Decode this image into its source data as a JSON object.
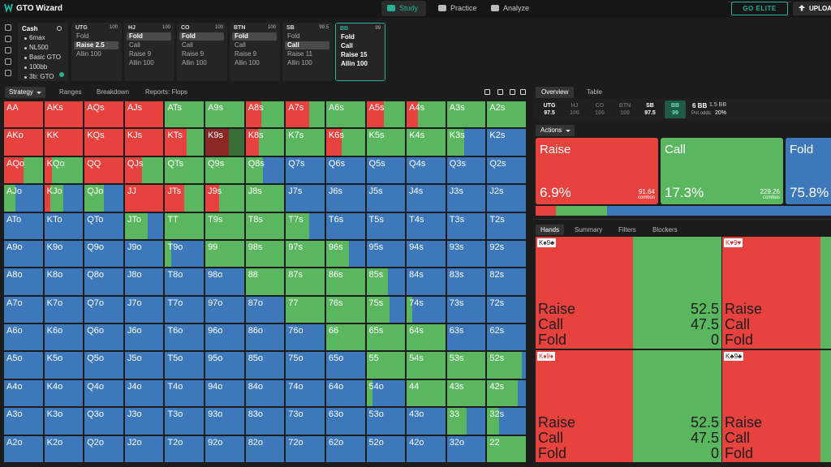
{
  "header": {
    "logo": "GTO Wizard",
    "nav": [
      "Study",
      "Practice",
      "Analyze"
    ],
    "active_nav": 0,
    "go_elite": "GO ELITE",
    "upload": "UPLOAD"
  },
  "game": {
    "title": "Cash",
    "settings": [
      "6max",
      "NL500",
      "Basic GTO",
      "100bb",
      "3b: GTO"
    ]
  },
  "positions": [
    {
      "name": "UTG",
      "stack": 100,
      "actions": [
        "Fold",
        "Raise 2.5",
        "Allin 100"
      ],
      "selected": 1
    },
    {
      "name": "HJ",
      "stack": 100,
      "actions": [
        "Fold",
        "Call",
        "Raise 9",
        "Allin 100"
      ],
      "selected": 0
    },
    {
      "name": "CO",
      "stack": 100,
      "actions": [
        "Fold",
        "Call",
        "Raise 9",
        "Allin 100"
      ],
      "selected": 0
    },
    {
      "name": "BTN",
      "stack": 100,
      "actions": [
        "Fold",
        "Call",
        "Raise 9",
        "Allin 100"
      ],
      "selected": 0
    },
    {
      "name": "SB",
      "stack": 99.5,
      "actions": [
        "Fold",
        "Call",
        "Raise 11",
        "Allin 100"
      ],
      "selected": 1
    },
    {
      "name": "BB",
      "stack": 99,
      "actions": [
        "Fold",
        "Call",
        "Raise 15",
        "Allin 100"
      ],
      "current": true
    }
  ],
  "tabs": [
    "Strategy",
    "Ranges",
    "Breakdown",
    "Reports: Flops"
  ],
  "matrix": {
    "colors": [
      "#e8423f",
      "#5bb75f",
      "#3c78ba"
    ],
    "selected": [
      1,
      5
    ],
    "hands": [
      [
        "AA",
        "AKs",
        "AQs",
        "AJs",
        "ATs",
        "A9s",
        "A8s",
        "A7s",
        "A6s",
        "A5s",
        "A4s",
        "A3s",
        "A2s"
      ],
      [
        "AKo",
        "KK",
        "KQs",
        "KJs",
        "KTs",
        "K9s",
        "K8s",
        "K7s",
        "K6s",
        "K5s",
        "K4s",
        "K3s",
        "K2s"
      ],
      [
        "AQo",
        "KQo",
        "QQ",
        "QJs",
        "QTs",
        "Q9s",
        "Q8s",
        "Q7s",
        "Q6s",
        "Q5s",
        "Q4s",
        "Q3s",
        "Q2s"
      ],
      [
        "AJo",
        "KJo",
        "QJo",
        "JJ",
        "JTs",
        "J9s",
        "J8s",
        "J7s",
        "J6s",
        "J5s",
        "J4s",
        "J3s",
        "J2s"
      ],
      [
        "ATo",
        "KTo",
        "QTo",
        "JTo",
        "TT",
        "T9s",
        "T8s",
        "T7s",
        "T6s",
        "T5s",
        "T4s",
        "T3s",
        "T2s"
      ],
      [
        "A9o",
        "K9o",
        "Q9o",
        "J9o",
        "T9o",
        "99",
        "98s",
        "97s",
        "96s",
        "95s",
        "94s",
        "93s",
        "92s"
      ],
      [
        "A8o",
        "K8o",
        "Q8o",
        "J8o",
        "T8o",
        "98o",
        "88",
        "87s",
        "86s",
        "85s",
        "84s",
        "83s",
        "82s"
      ],
      [
        "A7o",
        "K7o",
        "Q7o",
        "J7o",
        "T7o",
        "97o",
        "87o",
        "77",
        "76s",
        "75s",
        "74s",
        "73s",
        "72s"
      ],
      [
        "A6o",
        "K6o",
        "Q6o",
        "J6o",
        "T6o",
        "96o",
        "86o",
        "76o",
        "66",
        "65s",
        "64s",
        "63s",
        "62s"
      ],
      [
        "A5o",
        "K5o",
        "Q5o",
        "J5o",
        "T5o",
        "95o",
        "85o",
        "75o",
        "65o",
        "55",
        "54s",
        "53s",
        "52s"
      ],
      [
        "A4o",
        "K4o",
        "Q4o",
        "J4o",
        "T4o",
        "94o",
        "84o",
        "74o",
        "64o",
        "54o",
        "44",
        "43s",
        "42s"
      ],
      [
        "A3o",
        "K3o",
        "Q3o",
        "J3o",
        "T3o",
        "93o",
        "83o",
        "73o",
        "63o",
        "53o",
        "43o",
        "33",
        "32s"
      ],
      [
        "A2o",
        "K2o",
        "Q2o",
        "J2o",
        "T2o",
        "92o",
        "82o",
        "72o",
        "62o",
        "52o",
        "42o",
        "32o",
        "22"
      ]
    ],
    "strategy": [
      [
        [
          100,
          0,
          0
        ],
        [
          100,
          0,
          0
        ],
        [
          100,
          0,
          0
        ],
        [
          100,
          0,
          0
        ],
        [
          0,
          100,
          0
        ],
        [
          0,
          100,
          0
        ],
        [
          40,
          60,
          0
        ],
        [
          60,
          40,
          0
        ],
        [
          0,
          100,
          0
        ],
        [
          45,
          55,
          0
        ],
        [
          30,
          70,
          0
        ],
        [
          0,
          100,
          0
        ],
        [
          0,
          100,
          0
        ]
      ],
      [
        [
          100,
          0,
          0
        ],
        [
          100,
          0,
          0
        ],
        [
          100,
          0,
          0
        ],
        [
          100,
          0,
          0
        ],
        [
          55,
          45,
          0
        ],
        [
          60,
          40,
          0
        ],
        [
          35,
          65,
          0
        ],
        [
          0,
          100,
          0
        ],
        [
          40,
          60,
          0
        ],
        [
          0,
          100,
          0
        ],
        [
          0,
          100,
          0
        ],
        [
          0,
          45,
          55
        ],
        [
          0,
          0,
          100
        ]
      ],
      [
        [
          50,
          50,
          0
        ],
        [
          20,
          80,
          0
        ],
        [
          100,
          0,
          0
        ],
        [
          45,
          55,
          0
        ],
        [
          0,
          100,
          0
        ],
        [
          0,
          100,
          0
        ],
        [
          0,
          45,
          55
        ],
        [
          0,
          0,
          100
        ],
        [
          0,
          0,
          100
        ],
        [
          0,
          0,
          100
        ],
        [
          0,
          0,
          100
        ],
        [
          0,
          0,
          100
        ],
        [
          0,
          0,
          100
        ]
      ],
      [
        [
          0,
          30,
          70
        ],
        [
          15,
          35,
          50
        ],
        [
          0,
          50,
          50
        ],
        [
          100,
          0,
          0
        ],
        [
          50,
          50,
          0
        ],
        [
          35,
          65,
          0
        ],
        [
          0,
          100,
          0
        ],
        [
          0,
          0,
          100
        ],
        [
          0,
          0,
          100
        ],
        [
          0,
          0,
          100
        ],
        [
          0,
          0,
          100
        ],
        [
          0,
          0,
          100
        ],
        [
          0,
          0,
          100
        ]
      ],
      [
        [
          0,
          0,
          100
        ],
        [
          0,
          0,
          100
        ],
        [
          0,
          0,
          100
        ],
        [
          0,
          60,
          40
        ],
        [
          0,
          100,
          0
        ],
        [
          0,
          100,
          0
        ],
        [
          0,
          100,
          0
        ],
        [
          0,
          60,
          40
        ],
        [
          0,
          0,
          100
        ],
        [
          0,
          0,
          100
        ],
        [
          0,
          0,
          100
        ],
        [
          0,
          0,
          100
        ],
        [
          0,
          0,
          100
        ]
      ],
      [
        [
          0,
          0,
          100
        ],
        [
          0,
          0,
          100
        ],
        [
          0,
          0,
          100
        ],
        [
          0,
          0,
          100
        ],
        [
          0,
          15,
          85
        ],
        [
          0,
          100,
          0
        ],
        [
          0,
          100,
          0
        ],
        [
          0,
          100,
          0
        ],
        [
          0,
          60,
          40
        ],
        [
          0,
          0,
          100
        ],
        [
          0,
          0,
          100
        ],
        [
          0,
          0,
          100
        ],
        [
          0,
          0,
          100
        ]
      ],
      [
        [
          0,
          0,
          100
        ],
        [
          0,
          0,
          100
        ],
        [
          0,
          0,
          100
        ],
        [
          0,
          0,
          100
        ],
        [
          0,
          0,
          100
        ],
        [
          0,
          0,
          100
        ],
        [
          0,
          100,
          0
        ],
        [
          0,
          100,
          0
        ],
        [
          0,
          100,
          0
        ],
        [
          0,
          55,
          45
        ],
        [
          0,
          0,
          100
        ],
        [
          0,
          0,
          100
        ],
        [
          0,
          0,
          100
        ]
      ],
      [
        [
          0,
          0,
          100
        ],
        [
          0,
          0,
          100
        ],
        [
          0,
          0,
          100
        ],
        [
          0,
          0,
          100
        ],
        [
          0,
          0,
          100
        ],
        [
          0,
          0,
          100
        ],
        [
          0,
          0,
          100
        ],
        [
          0,
          100,
          0
        ],
        [
          0,
          100,
          0
        ],
        [
          0,
          60,
          40
        ],
        [
          0,
          15,
          85
        ],
        [
          0,
          0,
          100
        ],
        [
          0,
          0,
          100
        ]
      ],
      [
        [
          0,
          0,
          100
        ],
        [
          0,
          0,
          100
        ],
        [
          0,
          0,
          100
        ],
        [
          0,
          0,
          100
        ],
        [
          0,
          0,
          100
        ],
        [
          0,
          0,
          100
        ],
        [
          0,
          0,
          100
        ],
        [
          0,
          0,
          100
        ],
        [
          0,
          100,
          0
        ],
        [
          0,
          100,
          0
        ],
        [
          0,
          100,
          0
        ],
        [
          0,
          0,
          100
        ],
        [
          0,
          0,
          100
        ]
      ],
      [
        [
          0,
          0,
          100
        ],
        [
          0,
          0,
          100
        ],
        [
          0,
          0,
          100
        ],
        [
          0,
          0,
          100
        ],
        [
          0,
          0,
          100
        ],
        [
          0,
          0,
          100
        ],
        [
          0,
          0,
          100
        ],
        [
          0,
          0,
          100
        ],
        [
          0,
          0,
          100
        ],
        [
          0,
          100,
          0
        ],
        [
          0,
          100,
          0
        ],
        [
          0,
          100,
          0
        ],
        [
          0,
          90,
          10
        ]
      ],
      [
        [
          0,
          0,
          100
        ],
        [
          0,
          0,
          100
        ],
        [
          0,
          0,
          100
        ],
        [
          0,
          0,
          100
        ],
        [
          0,
          0,
          100
        ],
        [
          0,
          0,
          100
        ],
        [
          0,
          0,
          100
        ],
        [
          0,
          0,
          100
        ],
        [
          0,
          0,
          100
        ],
        [
          0,
          15,
          85
        ],
        [
          0,
          100,
          0
        ],
        [
          0,
          100,
          0
        ],
        [
          0,
          80,
          20
        ]
      ],
      [
        [
          0,
          0,
          100
        ],
        [
          0,
          0,
          100
        ],
        [
          0,
          0,
          100
        ],
        [
          0,
          0,
          100
        ],
        [
          0,
          0,
          100
        ],
        [
          0,
          0,
          100
        ],
        [
          0,
          0,
          100
        ],
        [
          0,
          0,
          100
        ],
        [
          0,
          0,
          100
        ],
        [
          0,
          0,
          100
        ],
        [
          0,
          0,
          100
        ],
        [
          0,
          50,
          50
        ],
        [
          0,
          30,
          70
        ]
      ],
      [
        [
          0,
          0,
          100
        ],
        [
          0,
          0,
          100
        ],
        [
          0,
          0,
          100
        ],
        [
          0,
          0,
          100
        ],
        [
          0,
          0,
          100
        ],
        [
          0,
          0,
          100
        ],
        [
          0,
          0,
          100
        ],
        [
          0,
          0,
          100
        ],
        [
          0,
          0,
          100
        ],
        [
          0,
          0,
          100
        ],
        [
          0,
          0,
          100
        ],
        [
          0,
          0,
          100
        ],
        [
          0,
          100,
          0
        ]
      ]
    ]
  },
  "overview": {
    "tabs": [
      "Overview",
      "Table"
    ],
    "stacks": [
      {
        "pos": "UTG",
        "stack": 97.5
      },
      {
        "pos": "HJ",
        "stack": 100,
        "dim": true
      },
      {
        "pos": "CO",
        "stack": 100,
        "dim": true
      },
      {
        "pos": "BTN",
        "stack": 100,
        "dim": true
      },
      {
        "pos": "SB",
        "stack": 97.5
      },
      {
        "pos": "BB",
        "stack": 99,
        "current": true
      }
    ],
    "pot": "6 BB",
    "blind": "1.5 BB",
    "pot_odds_label": "Pot odds:",
    "pot_odds": "20%",
    "actions_button": "Actions",
    "actions": [
      {
        "name": "Raise",
        "freq": 6.9,
        "freq_label": "6.9%",
        "combos": 91.64,
        "combos_label": "combos",
        "color": "#e8423f"
      },
      {
        "name": "Call",
        "freq": 17.3,
        "freq_label": "17.3%",
        "combos": 229.26,
        "combos_label": "combos",
        "color": "#5bb75f"
      },
      {
        "name": "Fold",
        "freq": 75.8,
        "freq_label": "75.8%",
        "color": "#3c78ba"
      }
    ]
  },
  "hands_panel": {
    "tabs": [
      "Hands",
      "Summary",
      "Filters",
      "Blockers"
    ],
    "cards": [
      {
        "hand": "K♠9♣",
        "actions": [
          "Raise",
          "Call",
          "Fold"
        ],
        "values": [
          52.5,
          47.5,
          0
        ]
      },
      {
        "hand": "K♥9♥",
        "actions": [
          "Raise",
          "Call",
          "Fold"
        ]
      },
      {
        "hand": "K♦9♦",
        "actions": [
          "Raise",
          "Call",
          "Fold"
        ],
        "values": [
          52.5,
          47.5,
          0
        ]
      },
      {
        "hand": "K♣9♣",
        "actions": [
          "Raise",
          "Call",
          "Fold"
        ]
      }
    ]
  }
}
